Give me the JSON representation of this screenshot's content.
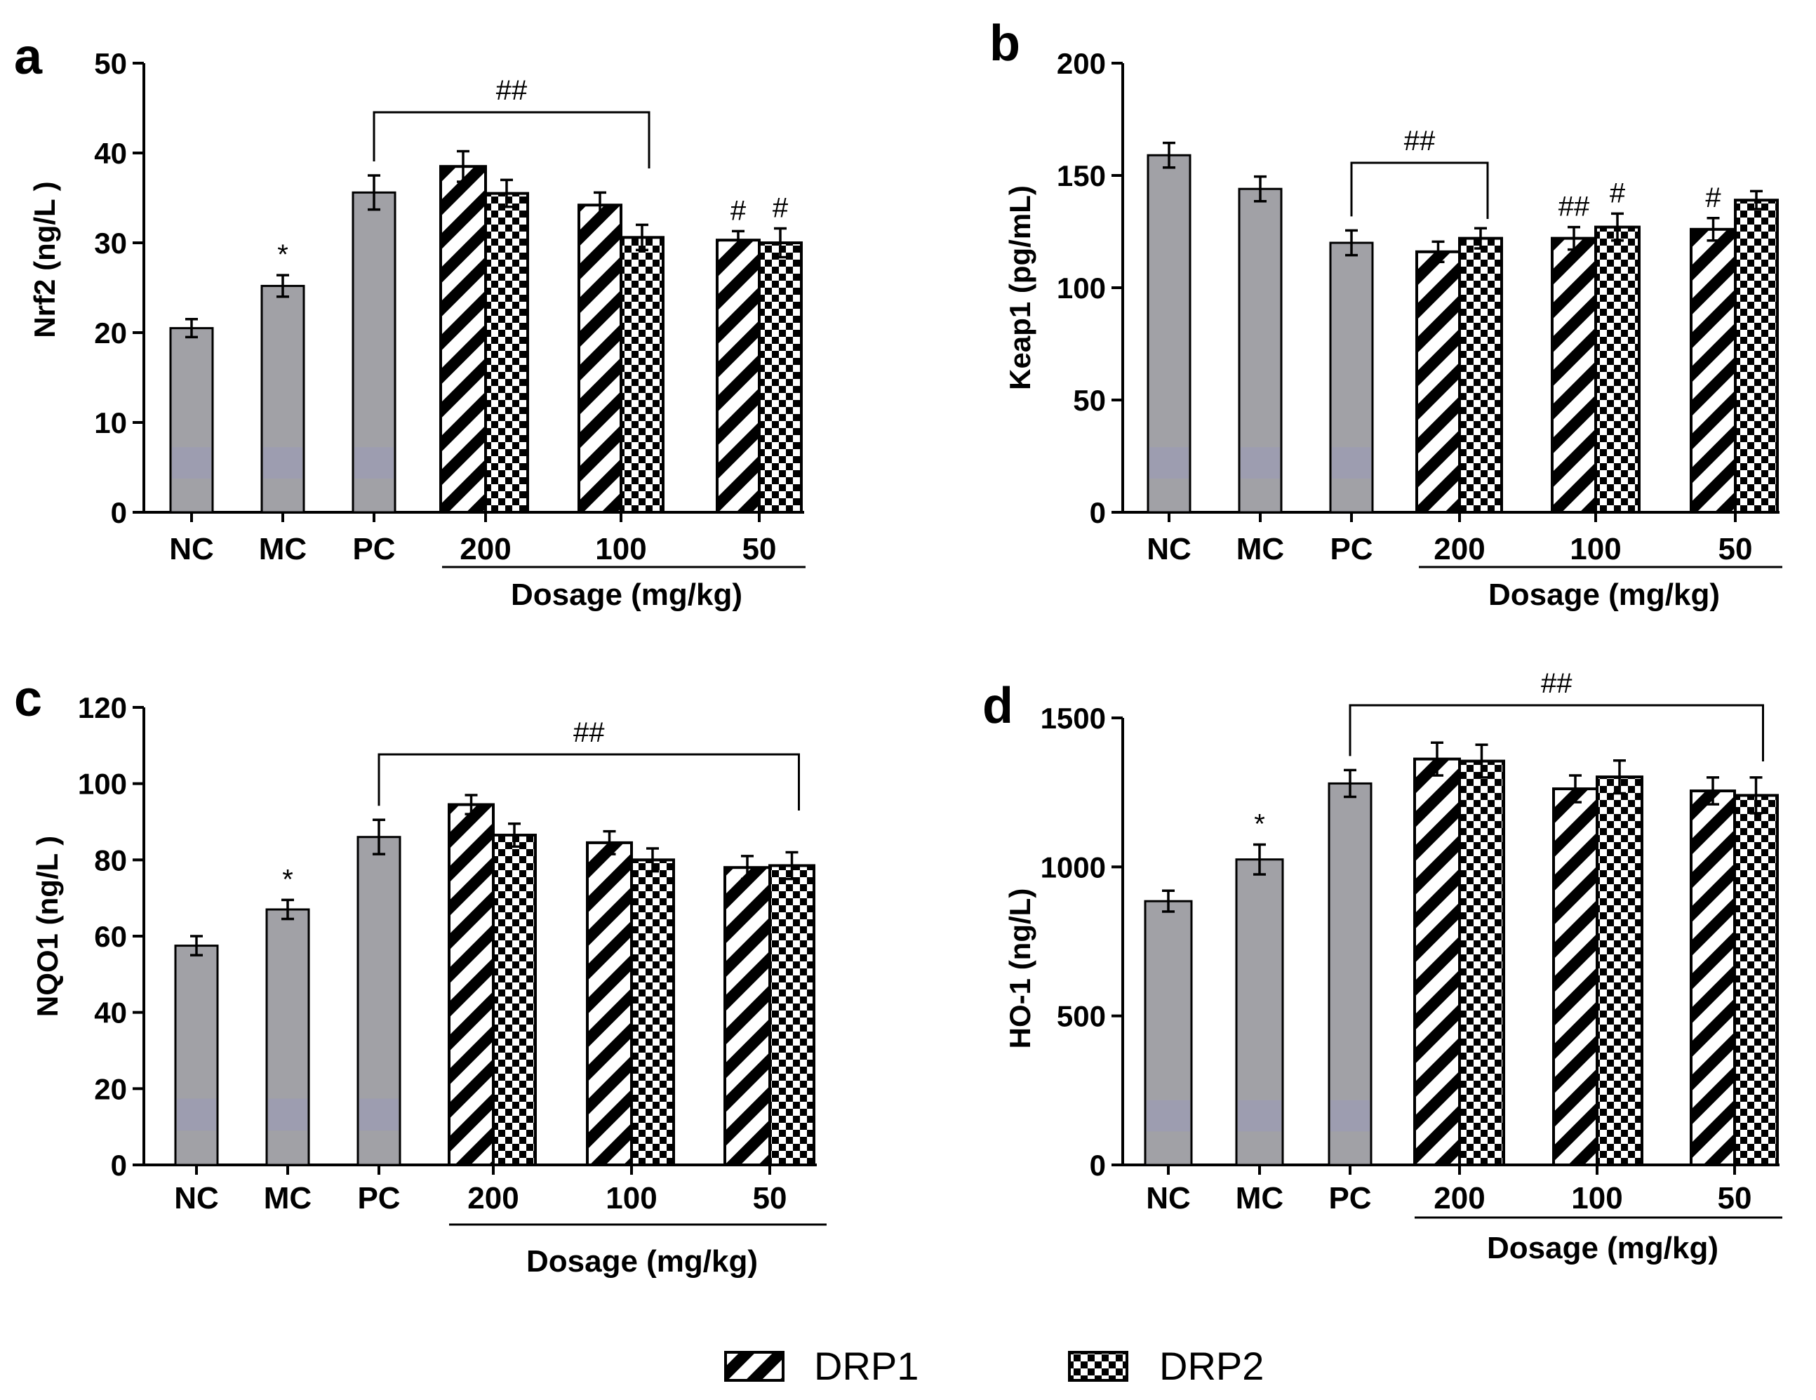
{
  "legend": {
    "drp1": "DRP1",
    "drp2": "DRP2"
  },
  "colors": {
    "control_bar": "#a1a1a6",
    "control_highlight": "#9a9ab8",
    "axis": "#000000",
    "pattern_fill": "#000000",
    "pattern_bg": "#ffffff"
  },
  "chart_data": [
    {
      "panel": "a",
      "type": "bar",
      "ylabel": "Nrf2 (ng/L )",
      "xlabel": "Dosage (mg/kg)",
      "ylim": [
        0,
        50
      ],
      "yticks": [
        "0",
        "10",
        "20",
        "30",
        "40",
        "50"
      ],
      "controls": [
        {
          "label": "NC",
          "value": 20.5,
          "err": 1.0,
          "sig": ""
        },
        {
          "label": "MC",
          "value": 25.2,
          "err": 1.2,
          "sig": "*"
        },
        {
          "label": "PC",
          "value": 35.6,
          "err": 1.9,
          "sig": ""
        }
      ],
      "doses": [
        {
          "label": "200",
          "drp1": 38.5,
          "drp1_err": 1.7,
          "drp2": 35.5,
          "drp2_err": 1.5,
          "drp1_sig": "",
          "drp2_sig": ""
        },
        {
          "label": "100",
          "drp1": 34.2,
          "drp1_err": 1.4,
          "drp2": 30.6,
          "drp2_err": 1.4,
          "drp1_sig": "",
          "drp2_sig": ""
        },
        {
          "label": "50",
          "drp1": 30.3,
          "drp1_err": 1.0,
          "drp2": 30.0,
          "drp2_err": 1.6,
          "drp1_sig": "#",
          "drp2_sig": "#"
        }
      ],
      "bracket": {
        "label": "##",
        "from": "PC",
        "to": "100-drp2",
        "level": 45
      }
    },
    {
      "panel": "b",
      "type": "bar",
      "ylabel": "Keap1 (pg/mL)",
      "xlabel": "Dosage (mg/kg)",
      "ylim": [
        0,
        200
      ],
      "yticks": [
        "0",
        "50",
        "100",
        "150",
        "200"
      ],
      "controls": [
        {
          "label": "NC",
          "value": 159,
          "err": 5.5,
          "sig": ""
        },
        {
          "label": "MC",
          "value": 144,
          "err": 5.5,
          "sig": ""
        },
        {
          "label": "PC",
          "value": 120,
          "err": 5.5,
          "sig": ""
        }
      ],
      "doses": [
        {
          "label": "200",
          "drp1": 116,
          "drp1_err": 4.5,
          "drp2": 122,
          "drp2_err": 4.5,
          "drp1_sig": "",
          "drp2_sig": ""
        },
        {
          "label": "100",
          "drp1": 122,
          "drp1_err": 5.0,
          "drp2": 127,
          "drp2_err": 6.0,
          "drp1_sig": "##",
          "drp2_sig": "#"
        },
        {
          "label": "50",
          "drp1": 126,
          "drp1_err": 5.0,
          "drp2": 139,
          "drp2_err": 4.0,
          "drp1_sig": "#",
          "drp2_sig": ""
        }
      ],
      "bracket": {
        "label": "##",
        "from": "PC",
        "to": "200-drp2",
        "level": 155
      }
    },
    {
      "panel": "c",
      "type": "bar",
      "ylabel": "NQO1 (ng/L )",
      "xlabel": "Dosage (mg/kg)",
      "ylim": [
        0,
        120
      ],
      "yticks": [
        "0",
        "20",
        "40",
        "60",
        "80",
        "100",
        "120"
      ],
      "controls": [
        {
          "label": "NC",
          "value": 57.5,
          "err": 2.5,
          "sig": ""
        },
        {
          "label": "MC",
          "value": 67,
          "err": 2.5,
          "sig": "*"
        },
        {
          "label": "PC",
          "value": 86,
          "err": 4.5,
          "sig": ""
        }
      ],
      "doses": [
        {
          "label": "200",
          "drp1": 94.5,
          "drp1_err": 2.5,
          "drp2": 86.5,
          "drp2_err": 3.0,
          "drp1_sig": "",
          "drp2_sig": ""
        },
        {
          "label": "100",
          "drp1": 84.5,
          "drp1_err": 3.0,
          "drp2": 80,
          "drp2_err": 3.0,
          "drp1_sig": "",
          "drp2_sig": ""
        },
        {
          "label": "50",
          "drp1": 78,
          "drp1_err": 3.0,
          "drp2": 78.5,
          "drp2_err": 3.5,
          "drp1_sig": "",
          "drp2_sig": ""
        }
      ],
      "bracket": {
        "label": "##",
        "from": "PC",
        "to": "50-drp2",
        "level": 108
      }
    },
    {
      "panel": "d",
      "type": "bar",
      "ylabel": "HO-1 (ng/L)",
      "xlabel": "Dosage (mg/kg)",
      "ylim": [
        0,
        1500
      ],
      "yticks": [
        "0",
        "500",
        "1000",
        "1500"
      ],
      "controls": [
        {
          "label": "NC",
          "value": 885,
          "err": 35,
          "sig": ""
        },
        {
          "label": "MC",
          "value": 1025,
          "err": 50,
          "sig": "*"
        },
        {
          "label": "PC",
          "value": 1280,
          "err": 45,
          "sig": ""
        }
      ],
      "doses": [
        {
          "label": "200",
          "drp1": 1362,
          "drp1_err": 55,
          "drp2": 1355,
          "drp2_err": 55,
          "drp1_sig": "",
          "drp2_sig": ""
        },
        {
          "label": "100",
          "drp1": 1262,
          "drp1_err": 45,
          "drp2": 1302,
          "drp2_err": 55,
          "drp1_sig": "",
          "drp2_sig": ""
        },
        {
          "label": "50",
          "drp1": 1255,
          "drp1_err": 45,
          "drp2": 1240,
          "drp2_err": 60,
          "drp1_sig": "",
          "drp2_sig": ""
        }
      ],
      "bracket": {
        "label": "##",
        "from": "PC",
        "to": "50-drp2",
        "level": 1520
      }
    }
  ]
}
